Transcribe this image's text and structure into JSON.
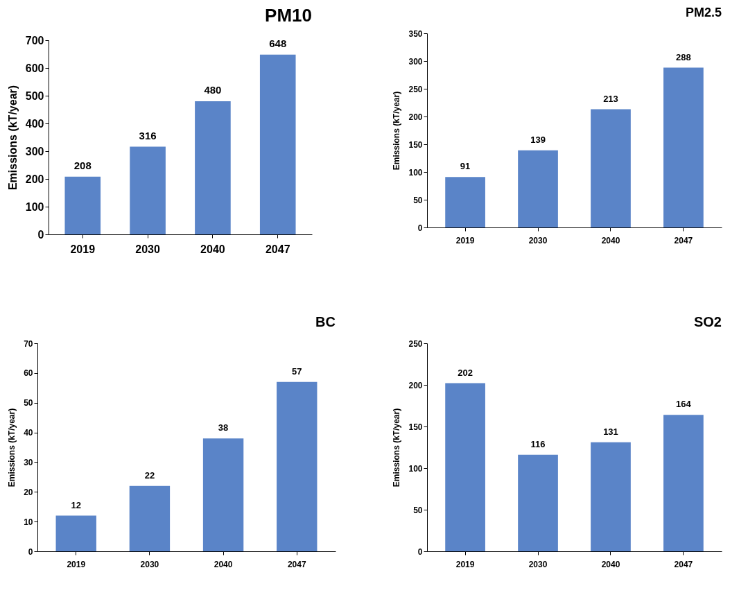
{
  "chart_data": [
    {
      "type": "bar",
      "title": "PM10",
      "ylabel": "Emissions (kT/year)",
      "categories": [
        "2019",
        "2030",
        "2040",
        "2047"
      ],
      "values": [
        208,
        316,
        480,
        648
      ],
      "color": "#5a84c8",
      "ylim": [
        0,
        700
      ],
      "yticks": [
        0,
        100,
        200,
        300,
        400,
        500,
        600,
        700
      ],
      "grid": false,
      "data_labels": true
    },
    {
      "type": "bar",
      "title": "PM2.5",
      "ylabel": "Emissions (kT/year)",
      "categories": [
        "2019",
        "2030",
        "2040",
        "2047"
      ],
      "values": [
        91,
        139,
        213,
        288
      ],
      "color": "#5a84c8",
      "ylim": [
        0,
        350
      ],
      "yticks": [
        0,
        50,
        100,
        150,
        200,
        250,
        300,
        350
      ],
      "grid": false,
      "data_labels": true
    },
    {
      "type": "bar",
      "title": "BC",
      "ylabel": "Emissions (kT/year)",
      "categories": [
        "2019",
        "2030",
        "2040",
        "2047"
      ],
      "values": [
        12,
        22,
        38,
        57
      ],
      "color": "#5a84c8",
      "ylim": [
        0,
        70
      ],
      "yticks": [
        0,
        10,
        20,
        30,
        40,
        50,
        60,
        70
      ],
      "grid": false,
      "data_labels": true
    },
    {
      "type": "bar",
      "title": "SO2",
      "ylabel": "Emissions (kT/year)",
      "categories": [
        "2019",
        "2030",
        "2040",
        "2047"
      ],
      "values": [
        202,
        116,
        131,
        164
      ],
      "color": "#5a84c8",
      "ylim": [
        0,
        250
      ],
      "yticks": [
        0,
        50,
        100,
        150,
        200,
        250
      ],
      "grid": false,
      "data_labels": true
    }
  ]
}
